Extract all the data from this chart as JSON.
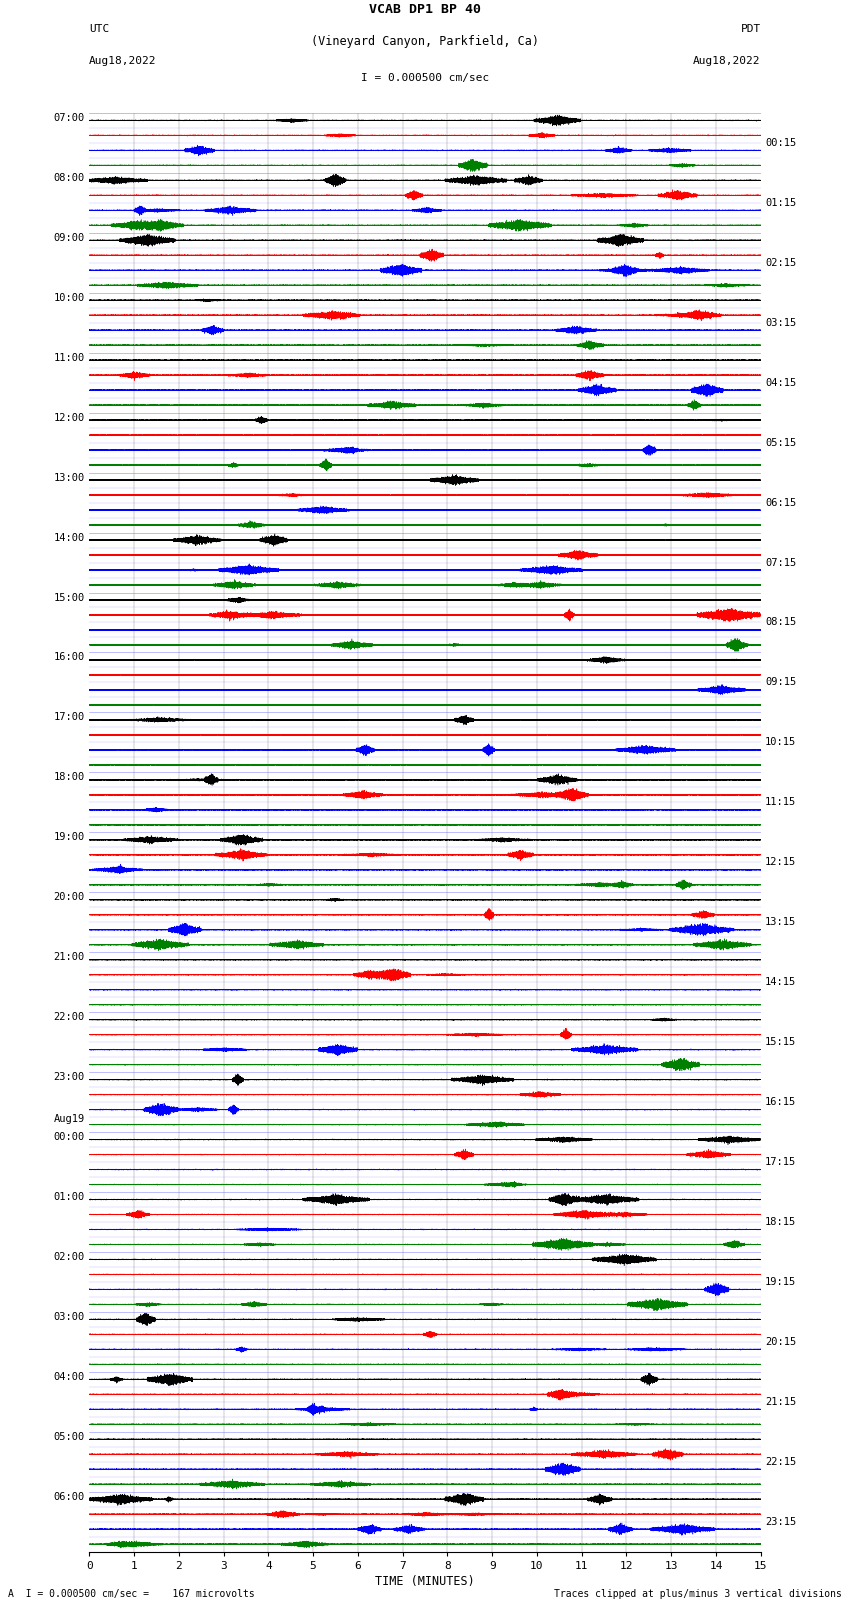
{
  "title_line1": "VCAB DP1 BP 40",
  "title_line2": "(Vineyard Canyon, Parkfield, Ca)",
  "scale_text": "I = 0.000500 cm/sec",
  "utc_label": "UTC",
  "utc_date": "Aug18,2022",
  "pdt_label": "PDT",
  "pdt_date": "Aug18,2022",
  "bottom_left": "A  I = 0.000500 cm/sec =    167 microvolts",
  "bottom_right": "Traces clipped at plus/minus 3 vertical divisions",
  "xlabel": "TIME (MINUTES)",
  "left_times": [
    "07:00",
    "08:00",
    "09:00",
    "10:00",
    "11:00",
    "12:00",
    "13:00",
    "14:00",
    "15:00",
    "16:00",
    "17:00",
    "18:00",
    "19:00",
    "20:00",
    "21:00",
    "22:00",
    "23:00",
    "00:00",
    "01:00",
    "02:00",
    "03:00",
    "04:00",
    "05:00",
    "06:00"
  ],
  "aug19_row": 17,
  "right_times": [
    "00:15",
    "01:15",
    "02:15",
    "03:15",
    "04:15",
    "05:15",
    "06:15",
    "07:15",
    "08:15",
    "09:15",
    "10:15",
    "11:15",
    "12:15",
    "13:15",
    "14:15",
    "15:15",
    "16:15",
    "17:15",
    "18:15",
    "19:15",
    "20:15",
    "21:15",
    "22:15",
    "23:15"
  ],
  "n_rows": 24,
  "n_channels": 4,
  "minutes": 15,
  "sample_rate": 40,
  "colors": [
    "black",
    "red",
    "blue",
    "green"
  ],
  "bg_color": "white",
  "noise_level": 0.04,
  "seed": 42,
  "lw": 0.35
}
